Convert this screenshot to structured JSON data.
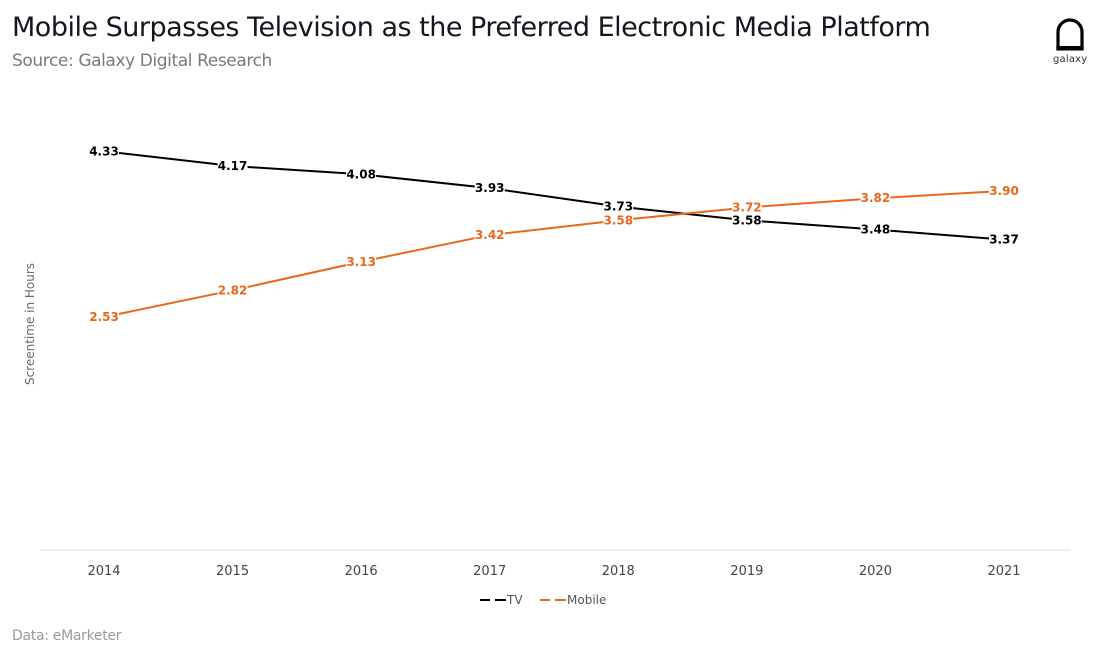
{
  "header": {
    "title": "Mobile Surpasses Television as the Preferred Electronic Media Platform",
    "subtitle": "Source: Galaxy Digital Research"
  },
  "logo": {
    "icon": "galaxy-helmet-icon",
    "text": "galaxy"
  },
  "footer": {
    "note": "Data: eMarketer"
  },
  "colors": {
    "tv": "#000000",
    "mobile": "#e8671b",
    "axis": "#dddddd"
  },
  "chart_data": {
    "type": "line",
    "title": "Mobile Surpasses Television as the Preferred Electronic Media Platform",
    "subtitle": "Source: Galaxy Digital Research",
    "xlabel": "",
    "ylabel": "Screentime in Hours",
    "categories": [
      "2014",
      "2015",
      "2016",
      "2017",
      "2018",
      "2019",
      "2020",
      "2021"
    ],
    "series": [
      {
        "name": "TV",
        "color": "#000000",
        "values": [
          4.33,
          4.17,
          4.08,
          3.93,
          3.73,
          3.58,
          3.48,
          3.37
        ]
      },
      {
        "name": "Mobile",
        "color": "#e8671b",
        "values": [
          2.53,
          2.82,
          3.13,
          3.42,
          3.58,
          3.72,
          3.82,
          3.9
        ]
      }
    ],
    "ylim": [
      0,
      4.8
    ],
    "y_ticks_shown": false,
    "grid": false,
    "data_labels": true,
    "legend": {
      "position": "bottom-center",
      "entries": [
        "TV",
        "Mobile"
      ]
    }
  }
}
